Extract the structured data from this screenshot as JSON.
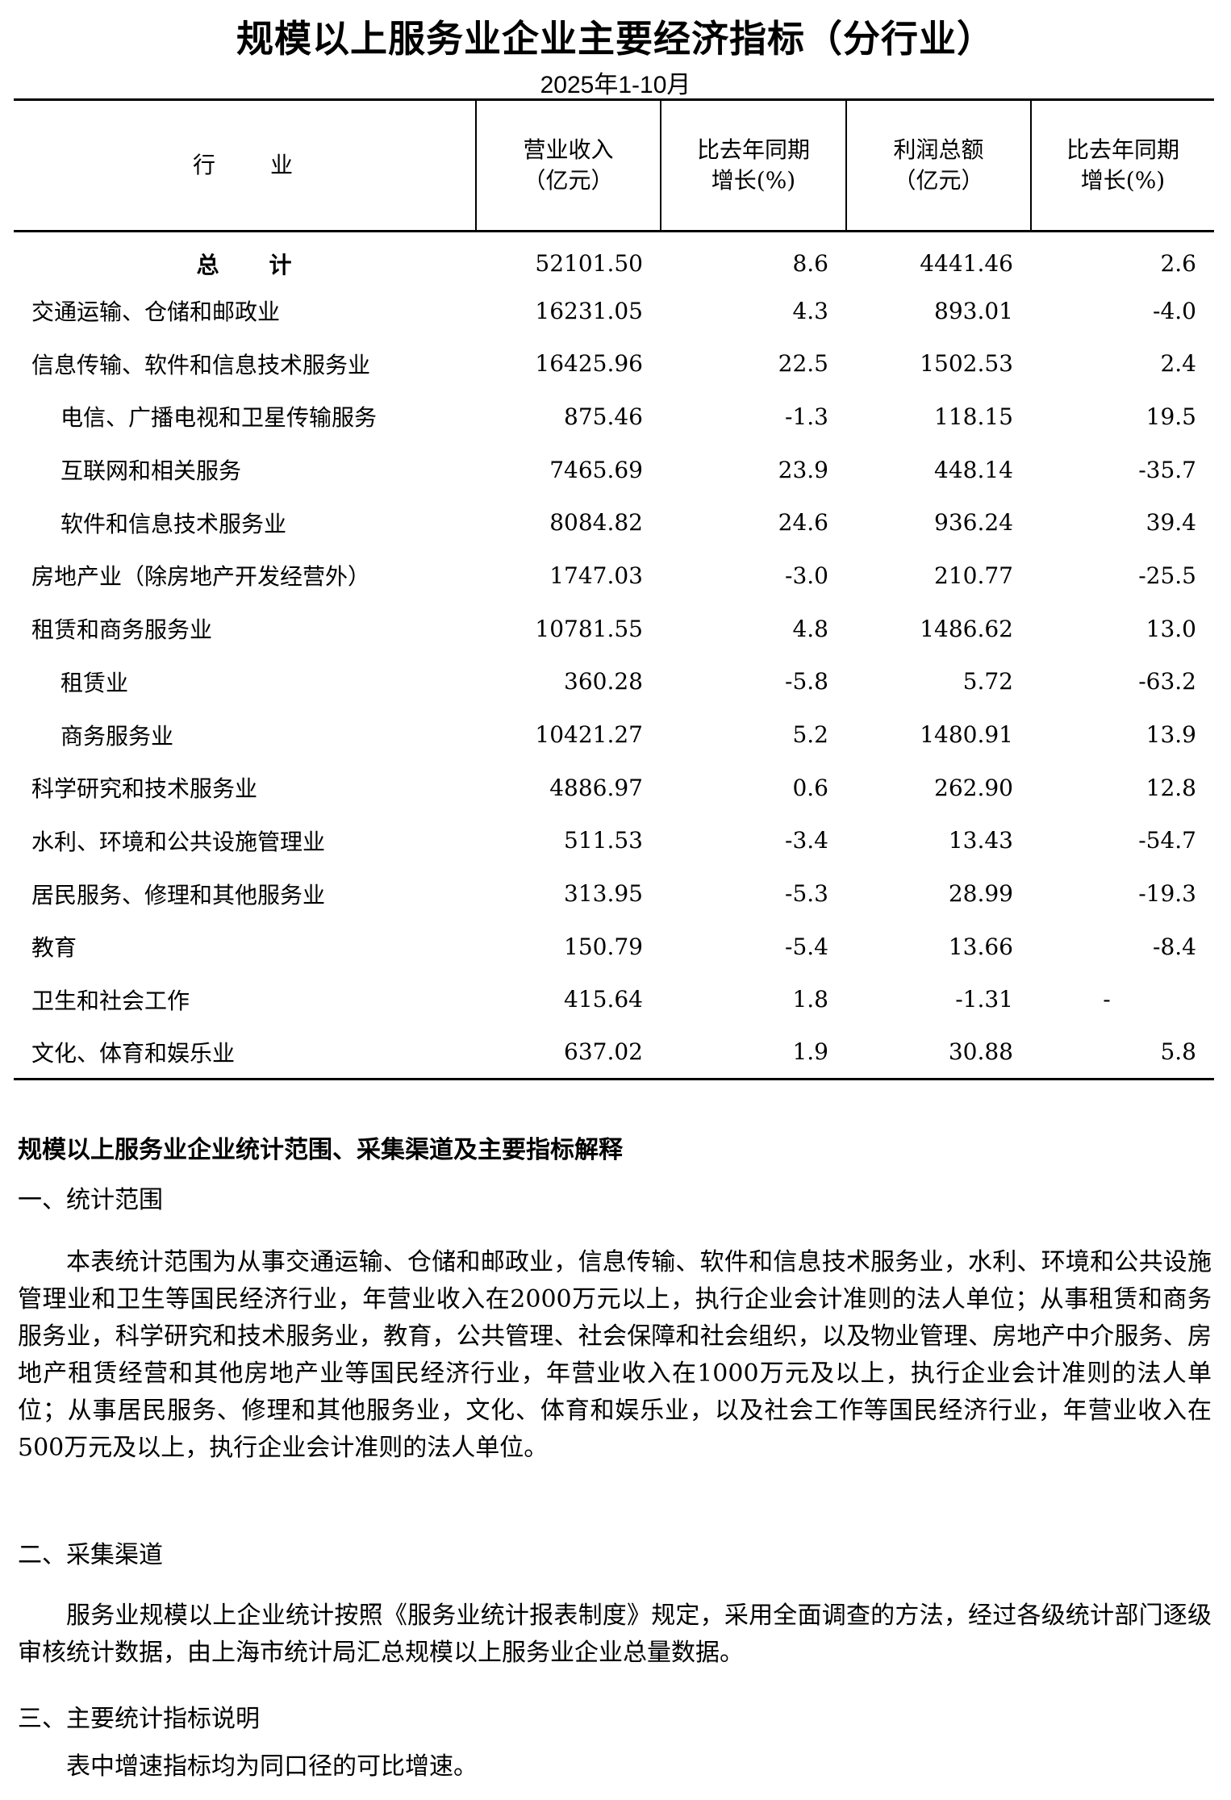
{
  "title": "规模以上服务业企业主要经济指标（分行业）",
  "subtitle": "2025年1-10月",
  "table": {
    "headers": [
      {
        "line1": "行　　业",
        "line2": ""
      },
      {
        "line1": "营业收入",
        "line2": "（亿元）"
      },
      {
        "line1": "比去年同期",
        "line2": "增长(%)"
      },
      {
        "line1": "利润总额",
        "line2": "（亿元）"
      },
      {
        "line1": "比去年同期",
        "line2": "增长(%)"
      }
    ],
    "rows": [
      {
        "name": "总　　计",
        "revenue": "52101.50",
        "rev_growth": "8.6",
        "profit": "4441.46",
        "profit_growth": "2.6"
      },
      {
        "name": "交通运输、仓储和邮政业",
        "revenue": "16231.05",
        "rev_growth": "4.3",
        "profit": "893.01",
        "profit_growth": "-4.0"
      },
      {
        "name": "信息传输、软件和信息技术服务业",
        "revenue": "16425.96",
        "rev_growth": "22.5",
        "profit": "1502.53",
        "profit_growth": "2.4"
      },
      {
        "name": "电信、广播电视和卫星传输服务",
        "revenue": "875.46",
        "rev_growth": "-1.3",
        "profit": "118.15",
        "profit_growth": "19.5"
      },
      {
        "name": "互联网和相关服务",
        "revenue": "7465.69",
        "rev_growth": "23.9",
        "profit": "448.14",
        "profit_growth": "-35.7"
      },
      {
        "name": "软件和信息技术服务业",
        "revenue": "8084.82",
        "rev_growth": "24.6",
        "profit": "936.24",
        "profit_growth": "39.4"
      },
      {
        "name": "房地产业（除房地产开发经营外）",
        "revenue": "1747.03",
        "rev_growth": "-3.0",
        "profit": "210.77",
        "profit_growth": "-25.5"
      },
      {
        "name": "租赁和商务服务业",
        "revenue": "10781.55",
        "rev_growth": "4.8",
        "profit": "1486.62",
        "profit_growth": "13.0"
      },
      {
        "name": "租赁业",
        "revenue": "360.28",
        "rev_growth": "-5.8",
        "profit": "5.72",
        "profit_growth": "-63.2"
      },
      {
        "name": "商务服务业",
        "revenue": "10421.27",
        "rev_growth": "5.2",
        "profit": "1480.91",
        "profit_growth": "13.9"
      },
      {
        "name": "科学研究和技术服务业",
        "revenue": "4886.97",
        "rev_growth": "0.6",
        "profit": "262.90",
        "profit_growth": "12.8"
      },
      {
        "name": "水利、环境和公共设施管理业",
        "revenue": "511.53",
        "rev_growth": "-3.4",
        "profit": "13.43",
        "profit_growth": "-54.7"
      },
      {
        "name": "居民服务、修理和其他服务业",
        "revenue": "313.95",
        "rev_growth": "-5.3",
        "profit": "28.99",
        "profit_growth": "-19.3"
      },
      {
        "name": "教育",
        "revenue": "150.79",
        "rev_growth": "-5.4",
        "profit": "13.66",
        "profit_growth": "-8.4"
      },
      {
        "name": "卫生和社会工作",
        "revenue": "415.64",
        "rev_growth": "1.8",
        "profit": "-1.31",
        "profit_growth": "-"
      },
      {
        "name": "文化、体育和娱乐业",
        "revenue": "637.02",
        "rev_growth": "1.9",
        "profit": "30.88",
        "profit_growth": "5.8"
      }
    ]
  },
  "notes": {
    "heading": "规模以上服务业企业统计范围、采集渠道及主要指标解释",
    "s1_title": "一、统计范围",
    "s1_text": "本表统计范围为从事交通运输、仓储和邮政业，信息传输、软件和信息技术服务业，水利、环境和公共设施管理业和卫生等国民经济行业，年营业收入在2000万元以上，执行企业会计准则的法人单位；从事租赁和商务服务业，科学研究和技术服务业，教育，公共管理、社会保障和社会组织，以及物业管理、房地产中介服务、房地产租赁经营和其他房地产业等国民经济行业，年营业收入在1000万元及以上，执行企业会计准则的法人单位；从事居民服务、修理和其他服务业，文化、体育和娱乐业，以及社会工作等国民经济行业，年营业收入在500万元及以上，执行企业会计准则的法人单位。",
    "s2_title": "二、采集渠道",
    "s2_text": "服务业规模以上企业统计按照《服务业统计报表制度》规定，采用全面调查的方法，经过各级统计部门逐级审核统计数据，由上海市统计局汇总规模以上服务业企业总量数据。",
    "s3_title": "三、主要统计指标说明",
    "s3_text": "表中增速指标均为同口径的可比增速。"
  }
}
